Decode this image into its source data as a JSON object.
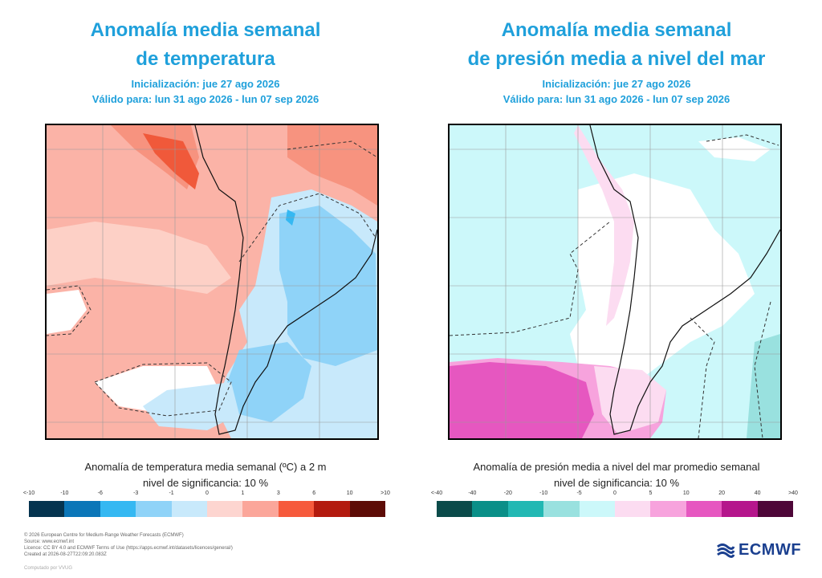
{
  "left_panel": {
    "title_line1": "Anomalía media semanal",
    "title_line2": "de temperatura",
    "init": "Inicialización: jue 27 ago 2026",
    "valid": "Válido para: lun 31 ago 2026 - lun 07 sep 2026",
    "legend_title": "Anomalía de temperatura media semanal (ºC) a 2 m",
    "significance": "nivel de significancia: 10 %",
    "colorbar_labels": [
      "<-10",
      "-10",
      "-6",
      "-3",
      "-1",
      "0",
      "1",
      "3",
      "6",
      "10",
      ">10"
    ],
    "colorbar_colors": [
      "#05344f",
      "#0b76b8",
      "#35b8f2",
      "#8fd3f8",
      "#c8e9fb",
      "#fdd5d0",
      "#fba69a",
      "#f65a3c",
      "#b31a0e",
      "#5d0c06"
    ]
  },
  "right_panel": {
    "title_line1": "Anomalía media semanal",
    "title_line2": "de presión media a nivel del mar",
    "init": "Inicialización: jue 27 ago 2026",
    "valid": "Válido para: lun 31 ago 2026 - lun 07 sep 2026",
    "legend_title": "Anomalía de presión media a nivel del mar promedio semanal",
    "significance": "nivel de significancia: 10 %",
    "colorbar_labels": [
      "<-40",
      "-40",
      "-20",
      "-10",
      "-5",
      "0",
      "5",
      "10",
      "20",
      "40",
      ">40"
    ],
    "colorbar_colors": [
      "#0b4b4a",
      "#0a8f88",
      "#22b8b3",
      "#99e1df",
      "#ccf8fa",
      "#fcdcf1",
      "#f7a3dd",
      "#e657c0",
      "#b5168c",
      "#4e0638"
    ]
  },
  "footer": {
    "line1": "© 2026 European Centre for Medium-Range Weather Forecasts (ECMWF)",
    "line2": "Source: www.ecmwf.int",
    "line3": "Licence: CC BY 4.0 and ECMWF Terms of Use (https://apps.ecmwf.int/datasets/licences/general/)",
    "line4": "Created at 2026-08-27T22:09:20.083Z",
    "computed": "Computado por VVUG"
  },
  "logo": {
    "text": "ECMWF",
    "color": "#1a3f8f"
  }
}
